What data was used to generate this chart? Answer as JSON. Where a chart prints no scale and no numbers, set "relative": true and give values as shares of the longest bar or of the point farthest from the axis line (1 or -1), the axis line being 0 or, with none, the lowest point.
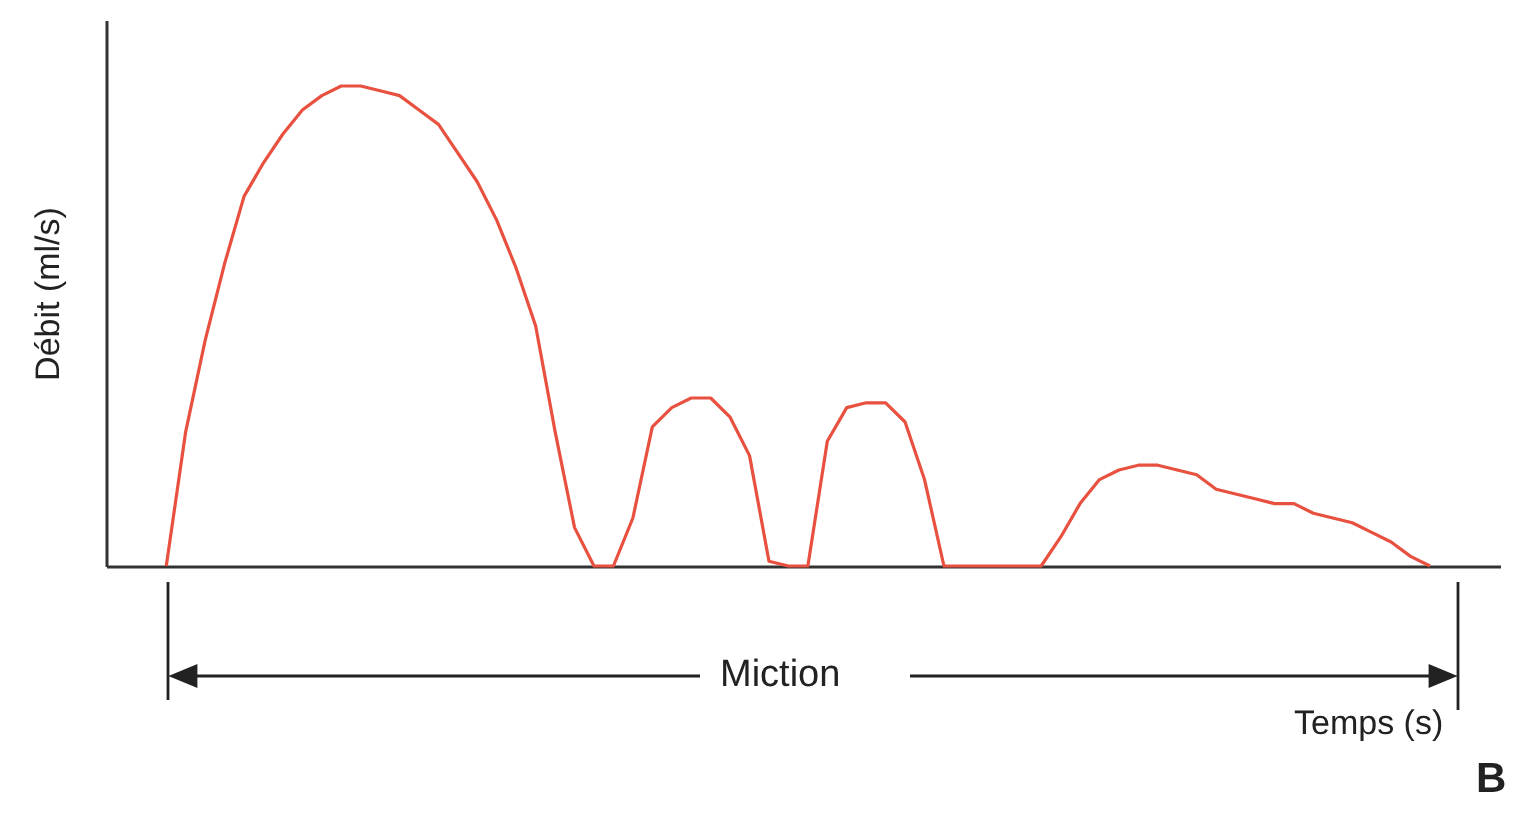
{
  "chart_data": {
    "type": "line",
    "relative": true,
    "ylabel": "Débit (ml/s)",
    "color": "#e8503f",
    "categories": [
      null,
      null,
      null,
      null,
      null,
      null,
      null,
      null,
      null,
      null,
      null,
      null,
      null,
      null,
      null,
      null,
      null,
      null,
      null,
      null,
      null,
      null,
      null,
      null,
      null,
      null,
      null,
      null,
      null,
      null,
      null,
      null,
      null,
      null,
      null,
      null,
      null,
      null,
      null,
      null,
      null,
      null,
      null,
      null,
      null,
      null,
      null,
      null,
      null,
      null,
      null,
      null,
      null,
      null,
      null,
      null,
      null,
      null,
      null,
      null,
      null,
      null,
      null,
      null,
      null,
      null
    ],
    "values": [
      0,
      0.28,
      0.47,
      0.63,
      0.77,
      0.84,
      0.9,
      0.95,
      0.98,
      1,
      1,
      0.99,
      0.98,
      0.95,
      0.92,
      0.86,
      0.8,
      0.72,
      0.62,
      0.5,
      0.28,
      0.08,
      0,
      0,
      0.1,
      0.29,
      0.33,
      0.35,
      0.35,
      0.31,
      0.23,
      0.01,
      0,
      0,
      0.26,
      0.33,
      0.34,
      0.34,
      0.3,
      0.18,
      0,
      0,
      0,
      0,
      0,
      0,
      0.06,
      0.13,
      0.18,
      0.2,
      0.21,
      0.21,
      0.2,
      0.19,
      0.16,
      0.15,
      0.14,
      0.13,
      0.13,
      0.11,
      0.1,
      0.09,
      0.07,
      0.05,
      0.02,
      0
    ],
    "annotations": [
      "Miction",
      "Temps (s)",
      "B"
    ]
  }
}
